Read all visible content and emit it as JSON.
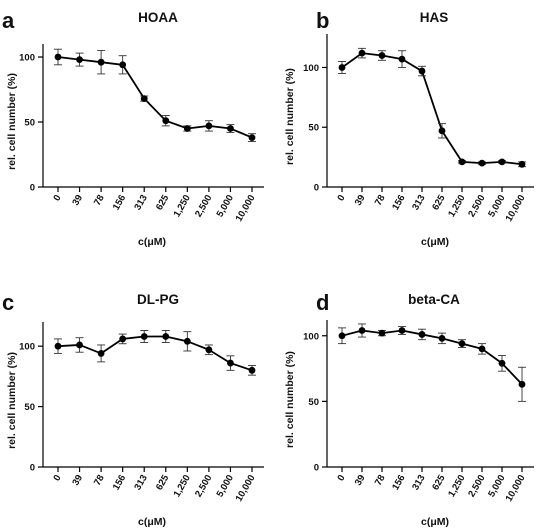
{
  "chart_data": [
    {
      "type": "line",
      "panel_label": "a",
      "title": "HOAA",
      "xlabel": "c(μM)",
      "ylabel": "rel. cell number (%)",
      "categories": [
        "0",
        "39",
        "78",
        "156",
        "313",
        "625",
        "1,250",
        "2,500",
        "5,000",
        "10,000"
      ],
      "values": [
        100,
        98,
        96,
        94,
        68,
        51,
        45,
        47,
        45,
        38
      ],
      "errors": [
        6,
        5,
        9,
        7,
        2,
        4,
        2,
        4,
        3,
        3
      ],
      "ylim": [
        0,
        110
      ],
      "yticks": [
        0,
        50,
        100
      ],
      "grid": false,
      "color": "#000000"
    },
    {
      "type": "line",
      "panel_label": "b",
      "title": "HAS",
      "xlabel": "c(μM)",
      "ylabel": "rel. cell number (%)",
      "categories": [
        "0",
        "39",
        "78",
        "156",
        "313",
        "625",
        "1,250",
        "2,500",
        "5,000",
        "10,000"
      ],
      "values": [
        100,
        112,
        110,
        107,
        97,
        47,
        21,
        20,
        21,
        19
      ],
      "errors": [
        5,
        4,
        4,
        7,
        4,
        6,
        1,
        1,
        1,
        2
      ],
      "ylim": [
        0,
        128
      ],
      "yticks": [
        0,
        50,
        100
      ],
      "grid": false,
      "color": "#000000"
    },
    {
      "type": "line",
      "panel_label": "c",
      "title": "DL-PG",
      "xlabel": "c(μM)",
      "ylabel": "rel. cell number (%)",
      "categories": [
        "0",
        "39",
        "78",
        "156",
        "313",
        "625",
        "1,250",
        "2,500",
        "5,000",
        "10,000"
      ],
      "values": [
        100,
        101,
        94,
        106,
        108,
        108,
        104,
        97,
        86,
        80
      ],
      "errors": [
        6,
        6,
        7,
        4,
        5,
        5,
        8,
        4,
        6,
        4
      ],
      "ylim": [
        0,
        120
      ],
      "yticks": [
        0,
        50,
        100
      ],
      "grid": false,
      "color": "#000000"
    },
    {
      "type": "line",
      "panel_label": "d",
      "title": "beta-CA",
      "xlabel": "c(μM)",
      "ylabel": "rel. cell number (%)",
      "categories": [
        "0",
        "39",
        "78",
        "156",
        "313",
        "625",
        "1,250",
        "2,500",
        "5,000",
        "10,000"
      ],
      "values": [
        100,
        104,
        102,
        104,
        101,
        98,
        94,
        90,
        79,
        63
      ],
      "errors": [
        6,
        5,
        2,
        3,
        4,
        4,
        3,
        4,
        6,
        13
      ],
      "ylim": [
        0,
        112
      ],
      "yticks": [
        0,
        50,
        100
      ],
      "grid": false,
      "color": "#000000"
    }
  ]
}
